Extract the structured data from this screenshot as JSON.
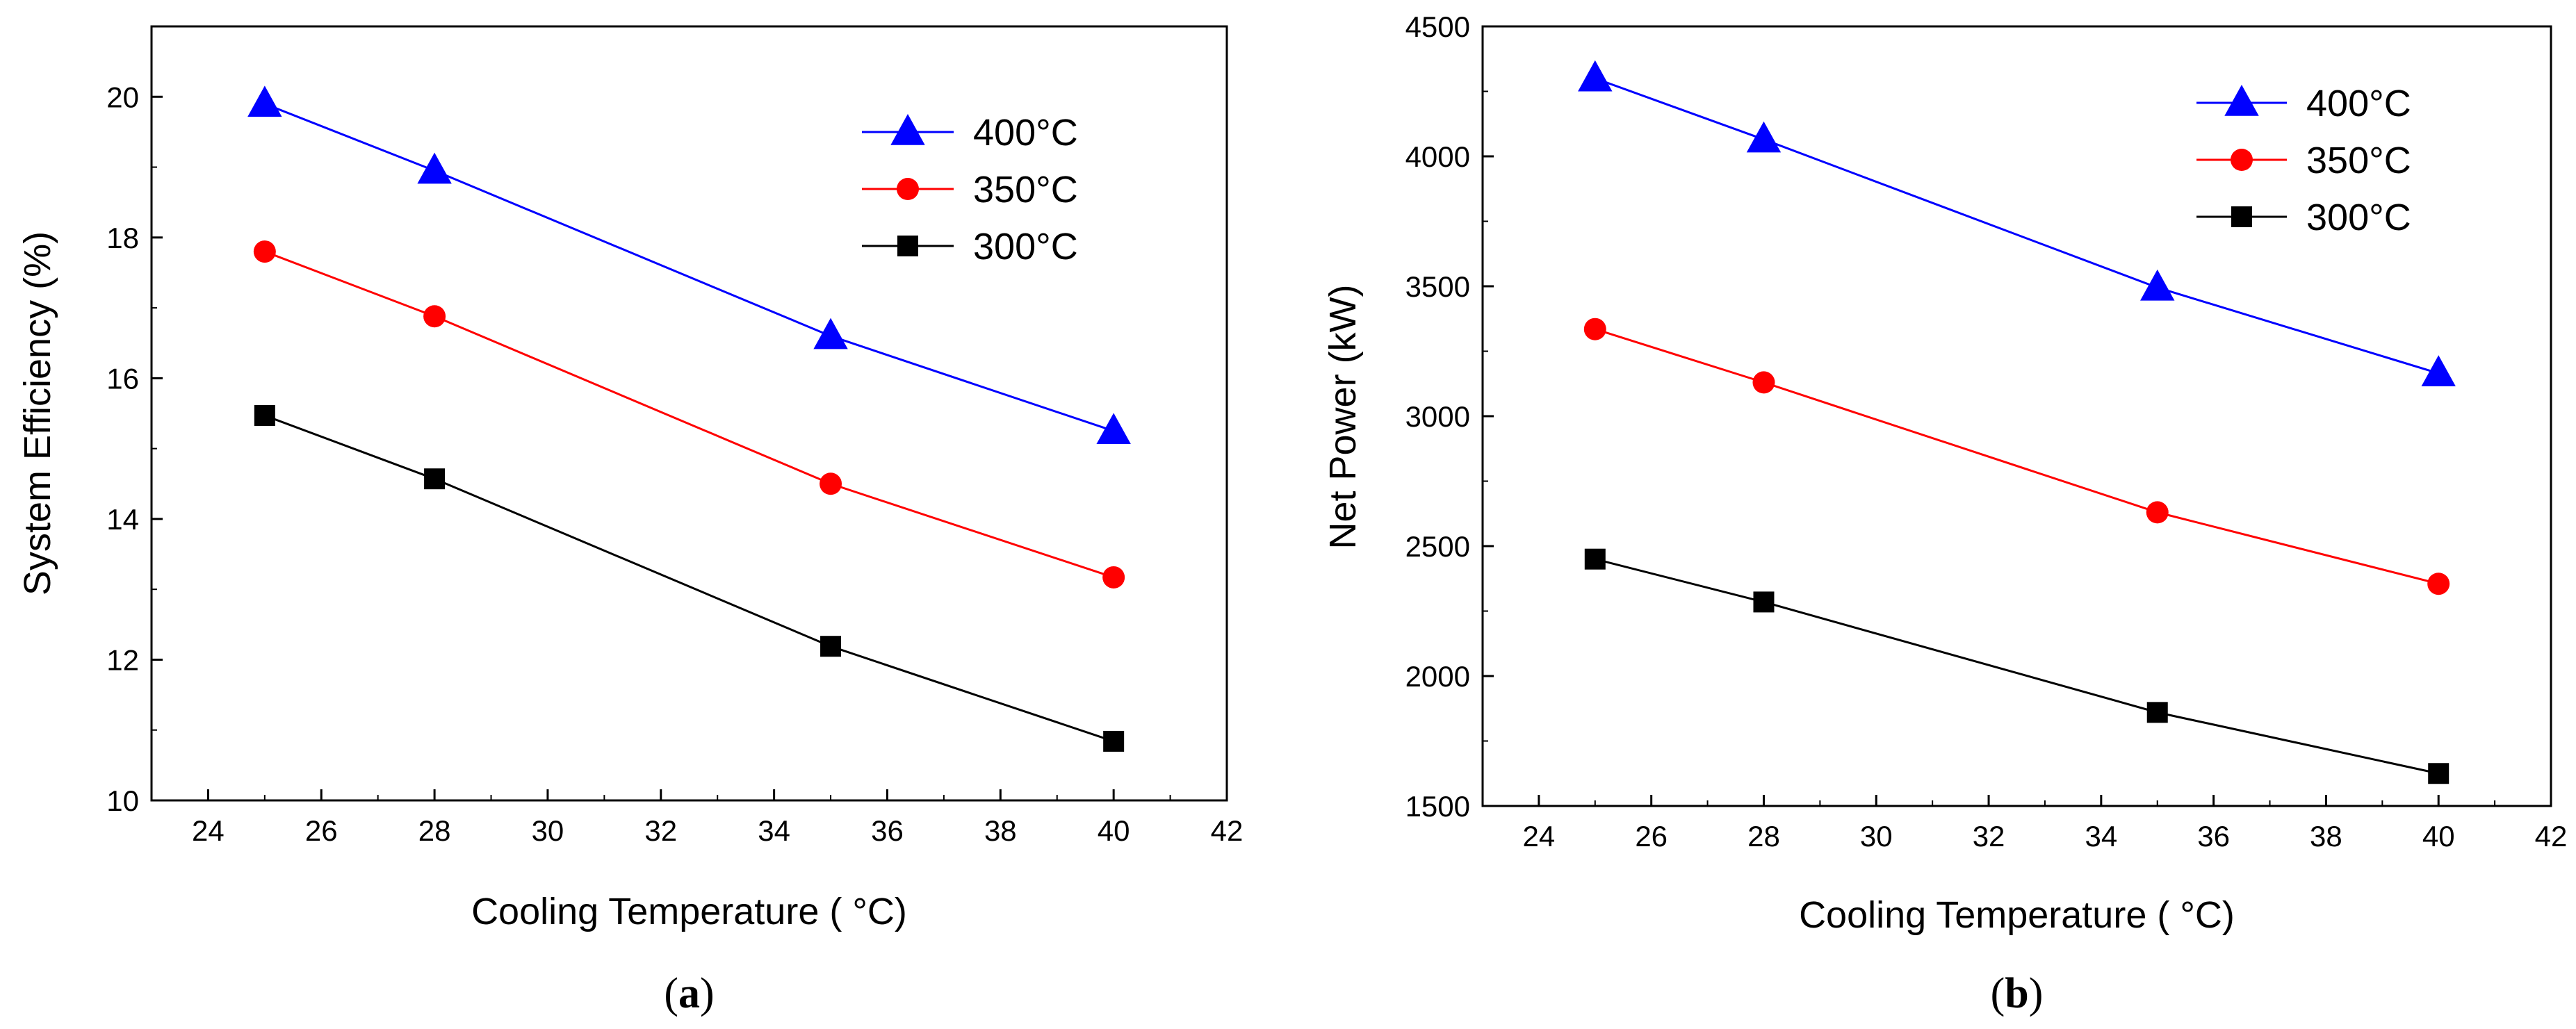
{
  "chart_data": [
    {
      "type": "line",
      "panel_label": {
        "open": "(",
        "letter": "a",
        "close": ")"
      },
      "xlabel": "Cooling Temperature ( °C)",
      "ylabel": "System Efficiency (%)",
      "xlim": [
        23,
        42
      ],
      "ylim": [
        10,
        21
      ],
      "xticks": [
        24,
        26,
        28,
        30,
        32,
        34,
        36,
        38,
        40,
        42
      ],
      "yticks": [
        10,
        12,
        14,
        16,
        18,
        20
      ],
      "x": [
        25,
        28,
        35,
        40
      ],
      "legend_position": "top-right",
      "series": [
        {
          "name": "400°C",
          "marker": "triangle",
          "color": "#0000ff",
          "values": [
            19.9,
            18.95,
            16.6,
            15.25
          ]
        },
        {
          "name": "350°C",
          "marker": "circle",
          "color": "#ff0000",
          "values": [
            17.8,
            16.88,
            14.5,
            13.17
          ]
        },
        {
          "name": "300°C",
          "marker": "square",
          "color": "#000000",
          "values": [
            15.47,
            14.57,
            12.19,
            10.84
          ]
        }
      ]
    },
    {
      "type": "line",
      "panel_label": {
        "open": "(",
        "letter": "b",
        "close": ")"
      },
      "xlabel": "Cooling Temperature ( °C)",
      "ylabel": "Net Power (kW)",
      "xlim": [
        23,
        42
      ],
      "ylim": [
        1500,
        4500
      ],
      "xticks": [
        24,
        26,
        28,
        30,
        32,
        34,
        36,
        38,
        40,
        42
      ],
      "yticks": [
        1500,
        2000,
        2500,
        3000,
        3500,
        4000,
        4500
      ],
      "x": [
        25,
        28,
        35,
        40
      ],
      "legend_position": "top-right",
      "series": [
        {
          "name": "400°C",
          "marker": "triangle",
          "color": "#0000ff",
          "values": [
            4300,
            4065,
            3495,
            3165
          ]
        },
        {
          "name": "350°C",
          "marker": "circle",
          "color": "#ff0000",
          "values": [
            3335,
            3130,
            2630,
            2355
          ]
        },
        {
          "name": "300°C",
          "marker": "square",
          "color": "#000000",
          "values": [
            2450,
            2285,
            1860,
            1625
          ]
        }
      ]
    }
  ]
}
